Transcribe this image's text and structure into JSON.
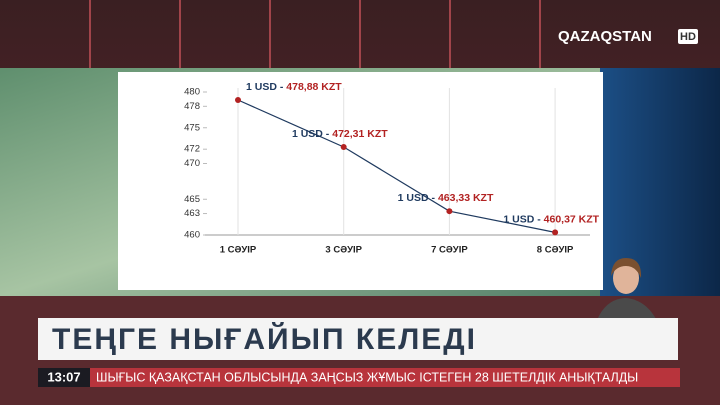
{
  "channel": {
    "logo": "QAZAQSTAN",
    "badge": "HD"
  },
  "headline": "ТЕҢГЕ НЫҒАЙЫП КЕЛЕДІ",
  "ticker": {
    "time": "13:07",
    "text": "ШЫҒЫС ҚАЗАҚСТАН ОБЛЫСЫНДА ЗАҢСЫЗ ЖҰМЫС ІСТЕГЕН 28 ШЕТЕЛДІК АНЫҚТАЛДЫ"
  },
  "chart_data": {
    "type": "line",
    "categories": [
      "1 СӘУІР",
      "3 СӘУІР",
      "7 СӘУІР",
      "8 СӘУІР"
    ],
    "values": [
      478.88,
      472.31,
      463.33,
      460.37
    ],
    "value_labels": [
      "1 USD - 478,88 KZT",
      "1 USD - 472,31 KZT",
      "1 USD - 463,33 KZT",
      "1 USD - 460,37 KZT"
    ],
    "color": "#1f3a5f",
    "marker_color": "#b22222",
    "ylim": [
      460,
      480
    ],
    "yticks": [
      460,
      463,
      465,
      470,
      472,
      475,
      478,
      480
    ],
    "grid": true
  }
}
